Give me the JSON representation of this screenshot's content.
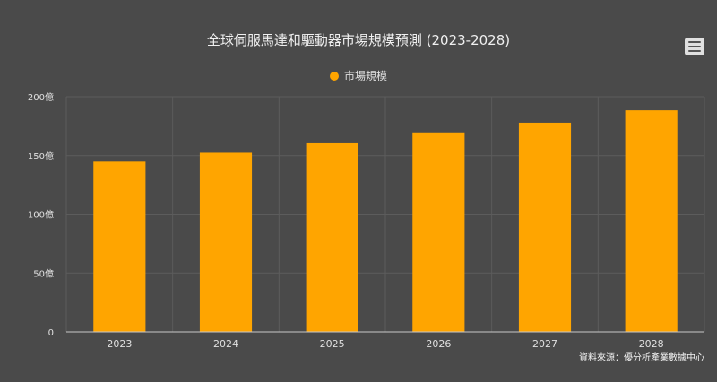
{
  "chart_data": {
    "type": "bar",
    "title": "全球伺服馬達和驅動器市場規模預測 (2023-2028)",
    "categories": [
      "2023",
      "2024",
      "2025",
      "2026",
      "2027",
      "2028"
    ],
    "series": [
      {
        "name": "市場規模",
        "values": [
          145,
          152.5,
          160.5,
          169,
          178,
          188.5
        ]
      }
    ],
    "ylim": [
      0,
      200
    ],
    "yticks": [
      "0",
      "50億",
      "100億",
      "150億",
      "200億"
    ],
    "ytick_values": [
      0,
      50,
      100,
      150,
      200
    ],
    "grid": true,
    "legend_position": "top-center",
    "colors": {
      "bar": "#ffa500",
      "background": "#4a4a4a",
      "grid": "#5c5c5c"
    }
  },
  "source_note": "資料來源：優分析產業數據中心",
  "menu_icon": "hamburger-menu-icon"
}
